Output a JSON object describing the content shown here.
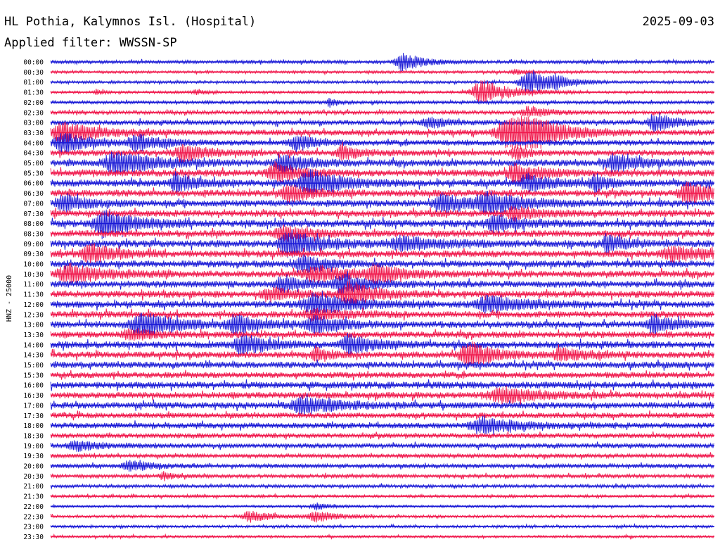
{
  "header": {
    "station": "HL Pothia, Kalymnos Isl. (Hospital)",
    "date": "2025-09-03",
    "filter": "Applied filter: WWSSN-SP"
  },
  "chart_data": {
    "type": "line",
    "title": "HL Pothia, Kalymnos Isl. (Hospital)",
    "ylabel": "HNZ - 25000",
    "colors": [
      "#1a1ad6",
      "#f0184c"
    ],
    "rows": [
      {
        "label": "00:00",
        "color": "#1a1ad6",
        "noise": 1.6,
        "events": [
          {
            "t": 0.53,
            "amp": 11,
            "w": 0.018
          }
        ]
      },
      {
        "label": "00:30",
        "color": "#f0184c",
        "noise": 1.3,
        "events": [
          {
            "t": 0.7,
            "amp": 3,
            "w": 0.01
          }
        ]
      },
      {
        "label": "01:00",
        "color": "#1a1ad6",
        "noise": 1.4,
        "events": [
          {
            "t": 0.72,
            "amp": 16,
            "w": 0.02
          },
          {
            "t": 0.76,
            "amp": 6,
            "w": 0.01
          }
        ]
      },
      {
        "label": "01:30",
        "color": "#f0184c",
        "noise": 1.3,
        "events": [
          {
            "t": 0.07,
            "amp": 5,
            "w": 0.004
          },
          {
            "t": 0.22,
            "amp": 3,
            "w": 0.01
          },
          {
            "t": 0.65,
            "amp": 14,
            "w": 0.025
          }
        ]
      },
      {
        "label": "02:00",
        "color": "#1a1ad6",
        "noise": 1.6,
        "events": [
          {
            "t": 0.42,
            "amp": 6,
            "w": 0.006
          }
        ]
      },
      {
        "label": "02:30",
        "color": "#f0184c",
        "noise": 1.8,
        "events": [
          {
            "t": 0.72,
            "amp": 6,
            "w": 0.02
          }
        ]
      },
      {
        "label": "03:00",
        "color": "#1a1ad6",
        "noise": 2.4,
        "events": [
          {
            "t": 0.57,
            "amp": 7,
            "w": 0.015
          },
          {
            "t": 0.91,
            "amp": 13,
            "w": 0.015
          }
        ]
      },
      {
        "label": "03:30",
        "color": "#f0184c",
        "noise": 2.8,
        "events": [
          {
            "t": 0.02,
            "amp": 12,
            "w": 0.03
          },
          {
            "t": 0.69,
            "amp": 18,
            "w": 0.03
          },
          {
            "t": 0.72,
            "amp": 14,
            "w": 0.025
          }
        ]
      },
      {
        "label": "04:00",
        "color": "#1a1ad6",
        "noise": 2.8,
        "events": [
          {
            "t": 0.02,
            "amp": 12,
            "w": 0.02
          },
          {
            "t": 0.13,
            "amp": 10,
            "w": 0.02
          },
          {
            "t": 0.37,
            "amp": 10,
            "w": 0.015
          }
        ]
      },
      {
        "label": "04:30",
        "color": "#f0184c",
        "noise": 3.0,
        "events": [
          {
            "t": 0.2,
            "amp": 10,
            "w": 0.02
          },
          {
            "t": 0.44,
            "amp": 8,
            "w": 0.015
          },
          {
            "t": 0.7,
            "amp": 8,
            "w": 0.01
          }
        ]
      },
      {
        "label": "05:00",
        "color": "#1a1ad6",
        "noise": 3.4,
        "events": [
          {
            "t": 0.1,
            "amp": 14,
            "w": 0.03
          },
          {
            "t": 0.35,
            "amp": 10,
            "w": 0.02
          },
          {
            "t": 0.85,
            "amp": 10,
            "w": 0.02
          }
        ]
      },
      {
        "label": "05:30",
        "color": "#f0184c",
        "noise": 3.4,
        "events": [
          {
            "t": 0.34,
            "amp": 11,
            "w": 0.02
          },
          {
            "t": 0.7,
            "amp": 11,
            "w": 0.02
          }
        ]
      },
      {
        "label": "06:00",
        "color": "#1a1ad6",
        "noise": 3.6,
        "events": [
          {
            "t": 0.19,
            "amp": 12,
            "w": 0.015
          },
          {
            "t": 0.39,
            "amp": 16,
            "w": 0.025
          },
          {
            "t": 0.72,
            "amp": 10,
            "w": 0.02
          },
          {
            "t": 0.82,
            "amp": 10,
            "w": 0.01
          }
        ]
      },
      {
        "label": "06:30",
        "color": "#f0184c",
        "noise": 3.4,
        "events": [
          {
            "t": 0.36,
            "amp": 10,
            "w": 0.02
          },
          {
            "t": 0.96,
            "amp": 14,
            "w": 0.02
          }
        ]
      },
      {
        "label": "07:00",
        "color": "#1a1ad6",
        "noise": 3.4,
        "events": [
          {
            "t": 0.02,
            "amp": 10,
            "w": 0.02
          },
          {
            "t": 0.59,
            "amp": 12,
            "w": 0.02
          },
          {
            "t": 0.66,
            "amp": 12,
            "w": 0.03
          }
        ]
      },
      {
        "label": "07:30",
        "color": "#f0184c",
        "noise": 3.4,
        "events": [
          {
            "t": 0.7,
            "amp": 7,
            "w": 0.02
          }
        ]
      },
      {
        "label": "08:00",
        "color": "#1a1ad6",
        "noise": 3.6,
        "events": [
          {
            "t": 0.08,
            "amp": 16,
            "w": 0.025
          },
          {
            "t": 0.67,
            "amp": 10,
            "w": 0.02
          }
        ]
      },
      {
        "label": "08:30",
        "color": "#f0184c",
        "noise": 3.4,
        "events": [
          {
            "t": 0.35,
            "amp": 8,
            "w": 0.02
          }
        ]
      },
      {
        "label": "09:00",
        "color": "#1a1ad6",
        "noise": 3.6,
        "events": [
          {
            "t": 0.36,
            "amp": 16,
            "w": 0.025
          },
          {
            "t": 0.53,
            "amp": 8,
            "w": 0.03
          },
          {
            "t": 0.84,
            "amp": 9,
            "w": 0.015
          }
        ]
      },
      {
        "label": "09:30",
        "color": "#f0184c",
        "noise": 3.4,
        "events": [
          {
            "t": 0.06,
            "amp": 11,
            "w": 0.02
          },
          {
            "t": 0.94,
            "amp": 8,
            "w": 0.03
          }
        ]
      },
      {
        "label": "10:00",
        "color": "#1a1ad6",
        "noise": 3.4,
        "events": [
          {
            "t": 0.38,
            "amp": 10,
            "w": 0.02
          }
        ]
      },
      {
        "label": "10:30",
        "color": "#f0184c",
        "noise": 3.4,
        "events": [
          {
            "t": 0.03,
            "amp": 10,
            "w": 0.03
          },
          {
            "t": 0.4,
            "amp": 9,
            "w": 0.03
          },
          {
            "t": 0.49,
            "amp": 10,
            "w": 0.02
          }
        ]
      },
      {
        "label": "11:00",
        "color": "#1a1ad6",
        "noise": 3.4,
        "events": [
          {
            "t": 0.35,
            "amp": 8,
            "w": 0.02
          },
          {
            "t": 0.44,
            "amp": 11,
            "w": 0.02
          }
        ]
      },
      {
        "label": "11:30",
        "color": "#f0184c",
        "noise": 3.4,
        "events": [
          {
            "t": 0.45,
            "amp": 16,
            "w": 0.02
          },
          {
            "t": 0.33,
            "amp": 7,
            "w": 0.02
          }
        ]
      },
      {
        "label": "12:00",
        "color": "#1a1ad6",
        "noise": 3.4,
        "events": [
          {
            "t": 0.4,
            "amp": 12,
            "w": 0.03
          },
          {
            "t": 0.66,
            "amp": 10,
            "w": 0.03
          }
        ]
      },
      {
        "label": "12:30",
        "color": "#f0184c",
        "noise": 3.2,
        "events": [
          {
            "t": 0.4,
            "amp": 6,
            "w": 0.03
          }
        ]
      },
      {
        "label": "13:00",
        "color": "#1a1ad6",
        "noise": 3.4,
        "events": [
          {
            "t": 0.14,
            "amp": 14,
            "w": 0.03
          },
          {
            "t": 0.28,
            "amp": 10,
            "w": 0.02
          },
          {
            "t": 0.4,
            "amp": 12,
            "w": 0.02
          },
          {
            "t": 0.91,
            "amp": 12,
            "w": 0.015
          }
        ]
      },
      {
        "label": "13:30",
        "color": "#f0184c",
        "noise": 3.2,
        "events": [
          {
            "t": 0.12,
            "amp": 6,
            "w": 0.02
          }
        ]
      },
      {
        "label": "14:00",
        "color": "#1a1ad6",
        "noise": 3.4,
        "events": [
          {
            "t": 0.29,
            "amp": 12,
            "w": 0.02
          },
          {
            "t": 0.45,
            "amp": 12,
            "w": 0.02
          }
        ]
      },
      {
        "label": "14:30",
        "color": "#f0184c",
        "noise": 3.2,
        "events": [
          {
            "t": 0.4,
            "amp": 10,
            "w": 0.01
          },
          {
            "t": 0.63,
            "amp": 16,
            "w": 0.02
          },
          {
            "t": 0.77,
            "amp": 8,
            "w": 0.02
          }
        ]
      },
      {
        "label": "15:00",
        "color": "#1a1ad6",
        "noise": 3.2,
        "events": []
      },
      {
        "label": "15:30",
        "color": "#f0184c",
        "noise": 3.0,
        "events": []
      },
      {
        "label": "16:00",
        "color": "#1a1ad6",
        "noise": 3.4,
        "events": []
      },
      {
        "label": "16:30",
        "color": "#f0184c",
        "noise": 3.2,
        "events": [
          {
            "t": 0.68,
            "amp": 9,
            "w": 0.03
          }
        ]
      },
      {
        "label": "17:00",
        "color": "#1a1ad6",
        "noise": 3.2,
        "events": [
          {
            "t": 0.38,
            "amp": 10,
            "w": 0.03
          }
        ]
      },
      {
        "label": "17:30",
        "color": "#f0184c",
        "noise": 2.8,
        "events": []
      },
      {
        "label": "18:00",
        "color": "#1a1ad6",
        "noise": 2.8,
        "events": [
          {
            "t": 0.65,
            "amp": 9,
            "w": 0.03
          }
        ]
      },
      {
        "label": "18:30",
        "color": "#f0184c",
        "noise": 2.4,
        "events": []
      },
      {
        "label": "19:00",
        "color": "#1a1ad6",
        "noise": 2.4,
        "events": [
          {
            "t": 0.04,
            "amp": 6,
            "w": 0.02
          }
        ]
      },
      {
        "label": "19:30",
        "color": "#f0184c",
        "noise": 2.0,
        "events": []
      },
      {
        "label": "20:00",
        "color": "#1a1ad6",
        "noise": 2.0,
        "events": [
          {
            "t": 0.12,
            "amp": 6,
            "w": 0.02
          }
        ]
      },
      {
        "label": "20:30",
        "color": "#f0184c",
        "noise": 1.8,
        "events": [
          {
            "t": 0.17,
            "amp": 5,
            "w": 0.01
          }
        ]
      },
      {
        "label": "21:00",
        "color": "#1a1ad6",
        "noise": 1.6,
        "events": []
      },
      {
        "label": "21:30",
        "color": "#f0184c",
        "noise": 1.4,
        "events": []
      },
      {
        "label": "22:00",
        "color": "#1a1ad6",
        "noise": 1.2,
        "events": [
          {
            "t": 0.4,
            "amp": 4,
            "w": 0.01
          }
        ]
      },
      {
        "label": "22:30",
        "color": "#f0184c",
        "noise": 1.4,
        "events": [
          {
            "t": 0.3,
            "amp": 6,
            "w": 0.02
          },
          {
            "t": 0.4,
            "amp": 6,
            "w": 0.02
          }
        ]
      },
      {
        "label": "23:00",
        "color": "#1a1ad6",
        "noise": 1.3,
        "events": []
      },
      {
        "label": "23:30",
        "color": "#f0184c",
        "noise": 1.2,
        "events": []
      }
    ]
  }
}
